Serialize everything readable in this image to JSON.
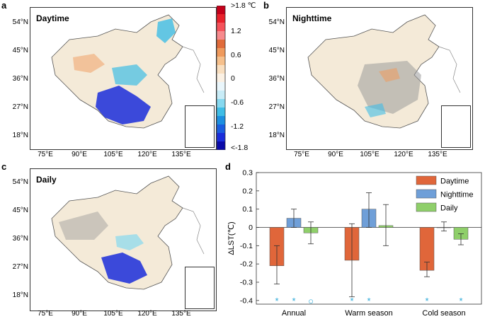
{
  "panels": {
    "a": {
      "letter": "a",
      "title": "Daytime"
    },
    "b": {
      "letter": "b",
      "title": "Nighttime"
    },
    "c": {
      "letter": "c",
      "title": "Daily"
    },
    "d": {
      "letter": "d"
    }
  },
  "map_axes": {
    "latitudes": [
      "54°N",
      "45°N",
      "36°N",
      "27°N",
      "18°N"
    ],
    "longitudes": [
      "75°E",
      "90°E",
      "105°E",
      "120°E",
      "135°E"
    ]
  },
  "colorbar": {
    "labels": [
      ">1.8 ℃",
      "1.2",
      "0.6",
      "0",
      "-0.6",
      "-1.2",
      "<-1.8"
    ],
    "colors": [
      "#c4001a",
      "#e8212b",
      "#f5525a",
      "#f78a8d",
      "#e06b3a",
      "#ef9a5c",
      "#f6c08c",
      "#f9dfc0",
      "#fbf1e4",
      "#eaf6fb",
      "#c8ecf7",
      "#86d8ef",
      "#3fbde6",
      "#1d8fe0",
      "#1a5de0",
      "#1a2ddb",
      "#0a0aa8"
    ]
  },
  "chart_data": {
    "type": "bar",
    "panel": "d",
    "categories": [
      "Annual",
      "Warm season",
      "Cold season"
    ],
    "series": [
      {
        "name": "Daytime",
        "color": "#e0663a",
        "values": [
          -0.21,
          -0.18,
          -0.235
        ],
        "err_low": [
          -0.31,
          -0.38,
          -0.27
        ],
        "err_high": [
          -0.1,
          0.02,
          -0.19
        ]
      },
      {
        "name": "Nighttime",
        "color": "#6f9fd8",
        "values": [
          0.05,
          0.1,
          0.0
        ],
        "err_low": [
          0.0,
          0.0,
          -0.02
        ],
        "err_high": [
          0.1,
          0.19,
          0.03
        ]
      },
      {
        "name": "Daily",
        "color": "#8fcf6a",
        "values": [
          -0.03,
          0.01,
          -0.065
        ],
        "err_low": [
          -0.09,
          -0.1,
          -0.095
        ],
        "err_high": [
          0.03,
          0.125,
          -0.035
        ]
      }
    ],
    "significance": [
      {
        "category": "Annual",
        "series": "Daytime",
        "marker": "*"
      },
      {
        "category": "Annual",
        "series": "Nighttime",
        "marker": "*"
      },
      {
        "category": "Annual",
        "series": "Daily",
        "marker": "○"
      },
      {
        "category": "Warm season",
        "series": "Daytime",
        "marker": "*"
      },
      {
        "category": "Warm season",
        "series": "Nighttime",
        "marker": "*"
      },
      {
        "category": "Cold season",
        "series": "Daytime",
        "marker": "*"
      },
      {
        "category": "Cold season",
        "series": "Daily",
        "marker": "*"
      }
    ],
    "ylabel": "ΔLST(℃)",
    "ylim": [
      -0.42,
      0.3
    ],
    "yticks": [
      0.3,
      0.2,
      0.1,
      0,
      -0.1,
      -0.2,
      -0.3,
      -0.4
    ],
    "ytick_labels": [
      "0.3",
      "0.2",
      "0.1",
      "0",
      "-0.1",
      "-0.2",
      "-0.3",
      "-0.4"
    ],
    "legend": [
      "Daytime",
      "Nighttime",
      "Daily"
    ],
    "legend_position": "top-right"
  }
}
